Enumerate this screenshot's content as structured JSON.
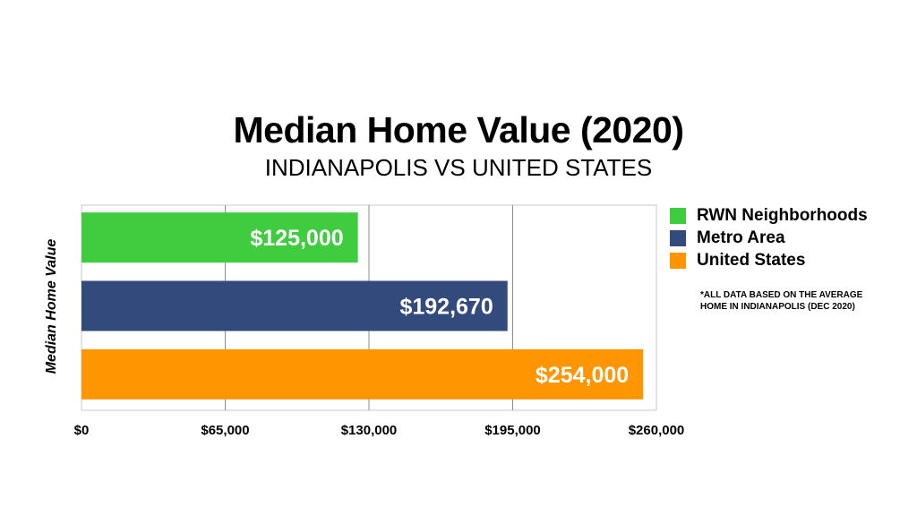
{
  "chart_data": {
    "type": "bar",
    "orientation": "horizontal",
    "title": "Median Home Value (2020)",
    "subtitle": "INDIANAPOLIS VS UNITED STATES",
    "ylabel": "Median Home Value",
    "xlabel": "",
    "categories": [
      "RWN Neighborhoods",
      "Metro Area",
      "United States"
    ],
    "values": [
      125000,
      192670,
      254000
    ],
    "value_labels": [
      "$125,000",
      "$192,670",
      "$254,000"
    ],
    "colors": [
      "#3fcc3f",
      "#324b7c",
      "#ff9500"
    ],
    "xlim": [
      0,
      260000
    ],
    "xticks": [
      0,
      65000,
      130000,
      195000,
      260000
    ],
    "xtick_labels": [
      "$0",
      "$65,000",
      "$130,000",
      "$195,000",
      "$260,000"
    ],
    "grid": true,
    "legend_position": "right",
    "note": "*ALL DATA BASED ON THE AVERAGE HOME IN INDIANAPOLIS (DEC 2020)"
  }
}
